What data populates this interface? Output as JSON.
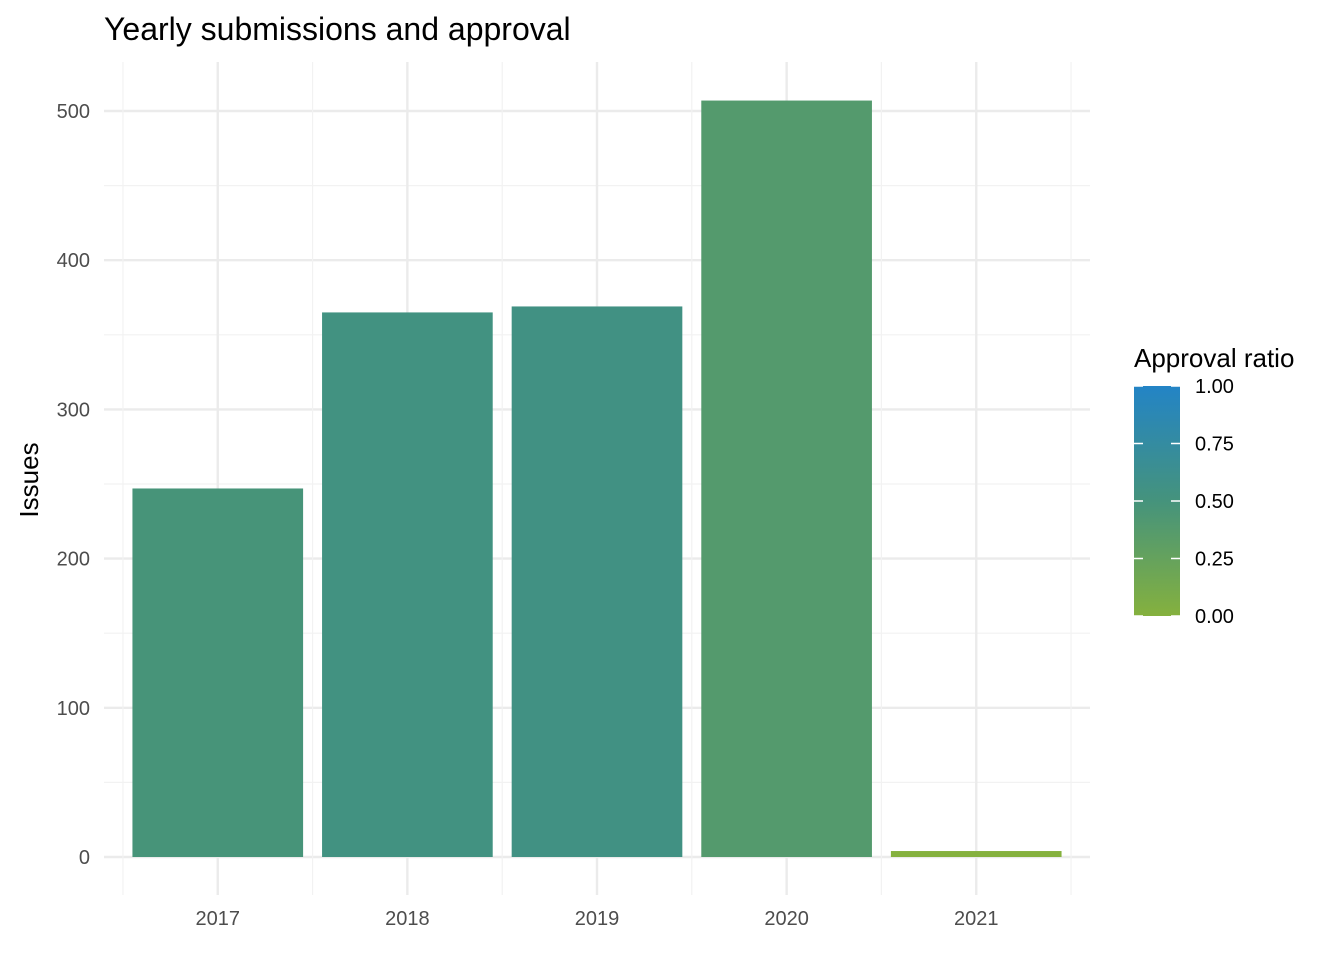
{
  "chart_data": {
    "type": "bar",
    "title": "Yearly submissions and approval",
    "xlabel": "",
    "ylabel": "Issues",
    "categories": [
      "2017",
      "2018",
      "2019",
      "2020",
      "2021"
    ],
    "values": [
      247,
      365,
      369,
      507,
      4
    ],
    "approval_ratio": [
      0.48,
      0.54,
      0.55,
      0.38,
      0.0
    ],
    "ylim": [
      0,
      530
    ],
    "yticks": [
      0,
      100,
      200,
      300,
      400,
      500
    ],
    "grid": true,
    "legend": {
      "title": "Approval ratio",
      "position": "right",
      "type": "colorbar",
      "ticks": [
        "0.00",
        "0.25",
        "0.50",
        "0.75",
        "1.00"
      ],
      "low_color": "#85b13e",
      "high_color": "#2384c6"
    }
  }
}
